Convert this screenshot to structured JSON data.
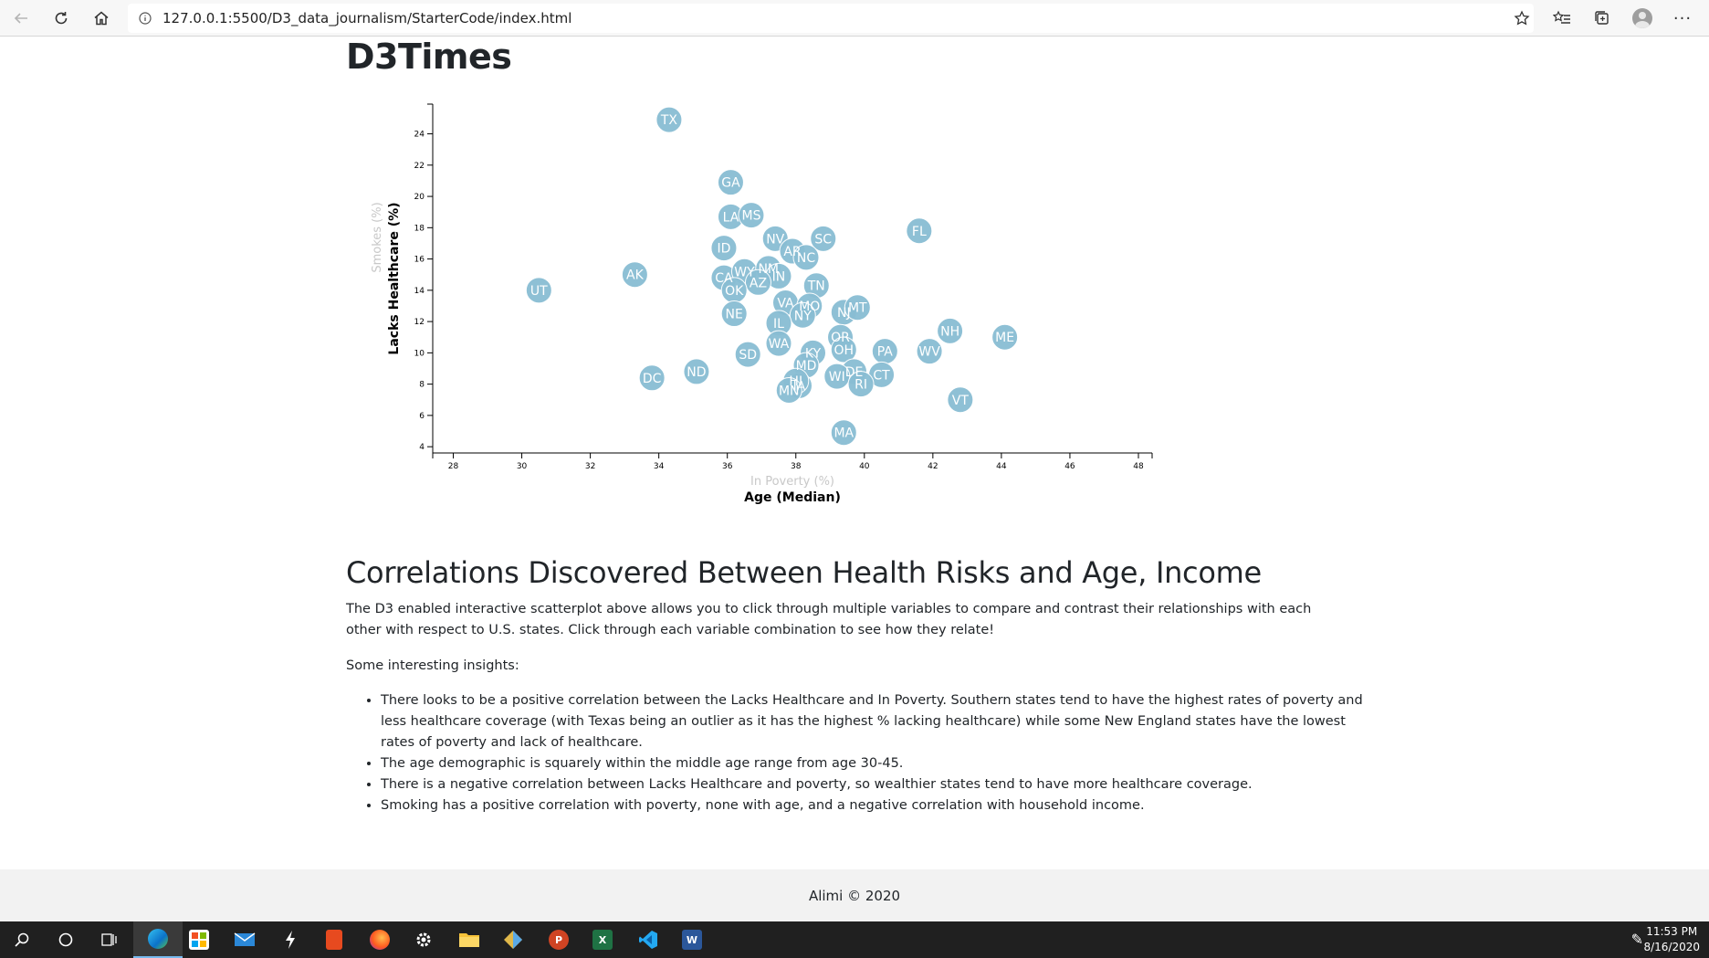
{
  "browser": {
    "url": "127.0.0.1:5500/D3_data_journalism/StarterCode/index.html",
    "icons": [
      "back-arrow-icon",
      "refresh-icon",
      "home-icon",
      "info-icon",
      "star-icon",
      "favorites-icon",
      "collections-icon",
      "profile-icon",
      "more-icon"
    ]
  },
  "page": {
    "title": "D3Times",
    "section_heading": "Correlations Discovered Between Health Risks and Age, Income",
    "intro": "The D3 enabled interactive scatterplot above allows you to click through multiple variables to compare and contrast their relationships with each other with respect to U.S. states. Click through each variable combination to see how they relate!",
    "insights_label": "Some interesting insights:",
    "insights": [
      "There looks to be a positive correlation between the Lacks Healthcare and In Poverty. Southern states tend to have the highest rates of poverty and less healthcare coverage (with Texas being an outlier as it has the highest % lacking healthcare) while some New England states have the lowest rates of poverty and lack of healthcare.",
      "The age demographic is squarely within the middle age range from age 30-45.",
      "There is a negative correlation between Lacks Healthcare and poverty, so wealthier states tend to have more healthcare coverage.",
      "Smoking has a positive correlation with poverty, none with age, and a negative correlation with household income."
    ]
  },
  "footer": {
    "text": "Alimi © 2020"
  },
  "taskbar": {
    "apps": [
      "search-icon",
      "cortana-icon",
      "task-view-icon",
      "edge-icon",
      "store-icon",
      "mail-icon",
      "lightning-icon",
      "office-icon",
      "firefox-icon",
      "settings-icon",
      "file-explorer-icon",
      "git-icon",
      "powerpoint-icon",
      "excel-icon",
      "vscode-icon",
      "word-icon"
    ],
    "time": "11:53 PM",
    "date": "8/16/2020"
  },
  "chart_data": {
    "type": "scatter",
    "xlabel_active": "Age (Median)",
    "xlabel_inactive": "In Poverty (%)",
    "ylabel_active": "Lacks Healthcare (%)",
    "ylabel_inactive": "Smokes (%)",
    "xlim": [
      27.4,
      48.4
    ],
    "ylim": [
      3.6,
      25.9
    ],
    "xticks": [
      28,
      30,
      32,
      34,
      36,
      38,
      40,
      42,
      44,
      46,
      48
    ],
    "yticks": [
      4,
      6,
      8,
      10,
      12,
      14,
      16,
      18,
      20,
      22,
      24
    ],
    "marker_color": "#89bdd3",
    "points": [
      {
        "label": "TX",
        "x": 34.3,
        "y": 24.9
      },
      {
        "label": "GA",
        "x": 36.1,
        "y": 20.9
      },
      {
        "label": "LA",
        "x": 36.1,
        "y": 18.7
      },
      {
        "label": "MS",
        "x": 36.7,
        "y": 18.8
      },
      {
        "label": "NV",
        "x": 37.4,
        "y": 17.3
      },
      {
        "label": "SC",
        "x": 38.8,
        "y": 17.3
      },
      {
        "label": "FL",
        "x": 41.6,
        "y": 17.8
      },
      {
        "label": "AR",
        "x": 37.9,
        "y": 16.5
      },
      {
        "label": "NC",
        "x": 38.3,
        "y": 16.1
      },
      {
        "label": "ID",
        "x": 35.9,
        "y": 16.7
      },
      {
        "label": "AK",
        "x": 33.3,
        "y": 15.0
      },
      {
        "label": "UT",
        "x": 30.5,
        "y": 14.0
      },
      {
        "label": "CA",
        "x": 35.9,
        "y": 14.8
      },
      {
        "label": "WY",
        "x": 36.5,
        "y": 15.2
      },
      {
        "label": "NM",
        "x": 37.2,
        "y": 15.4
      },
      {
        "label": "IN",
        "x": 37.5,
        "y": 14.9
      },
      {
        "label": "AZ",
        "x": 36.9,
        "y": 14.5
      },
      {
        "label": "OK",
        "x": 36.2,
        "y": 14.0
      },
      {
        "label": "TN",
        "x": 38.6,
        "y": 14.3
      },
      {
        "label": "VA",
        "x": 37.7,
        "y": 13.2
      },
      {
        "label": "MO",
        "x": 38.4,
        "y": 13.0
      },
      {
        "label": "NJ",
        "x": 39.4,
        "y": 12.6
      },
      {
        "label": "MT",
        "x": 39.8,
        "y": 12.9
      },
      {
        "label": "NE",
        "x": 36.2,
        "y": 12.5
      },
      {
        "label": "NY",
        "x": 38.2,
        "y": 12.4
      },
      {
        "label": "IL",
        "x": 37.5,
        "y": 11.9
      },
      {
        "label": "NH",
        "x": 42.5,
        "y": 11.4
      },
      {
        "label": "ME",
        "x": 44.1,
        "y": 11.0
      },
      {
        "label": "OR",
        "x": 39.3,
        "y": 11.0
      },
      {
        "label": "WA",
        "x": 37.5,
        "y": 10.6
      },
      {
        "label": "KY",
        "x": 38.5,
        "y": 10.0
      },
      {
        "label": "OH",
        "x": 39.4,
        "y": 10.2
      },
      {
        "label": "PA",
        "x": 40.6,
        "y": 10.1
      },
      {
        "label": "WV",
        "x": 41.9,
        "y": 10.1
      },
      {
        "label": "SD",
        "x": 36.6,
        "y": 9.9
      },
      {
        "label": "MD",
        "x": 38.3,
        "y": 9.2
      },
      {
        "label": "ND",
        "x": 35.1,
        "y": 8.8
      },
      {
        "label": "DC",
        "x": 33.8,
        "y": 8.4
      },
      {
        "label": "DE",
        "x": 39.7,
        "y": 8.8
      },
      {
        "label": "WI",
        "x": 39.2,
        "y": 8.5
      },
      {
        "label": "CT",
        "x": 40.5,
        "y": 8.6
      },
      {
        "label": "RI",
        "x": 39.9,
        "y": 8.0
      },
      {
        "label": "IA",
        "x": 38.1,
        "y": 7.9
      },
      {
        "label": "HI",
        "x": 38.0,
        "y": 8.2
      },
      {
        "label": "MN",
        "x": 37.8,
        "y": 7.6
      },
      {
        "label": "VT",
        "x": 42.8,
        "y": 7.0
      },
      {
        "label": "MA",
        "x": 39.4,
        "y": 4.9
      }
    ]
  }
}
